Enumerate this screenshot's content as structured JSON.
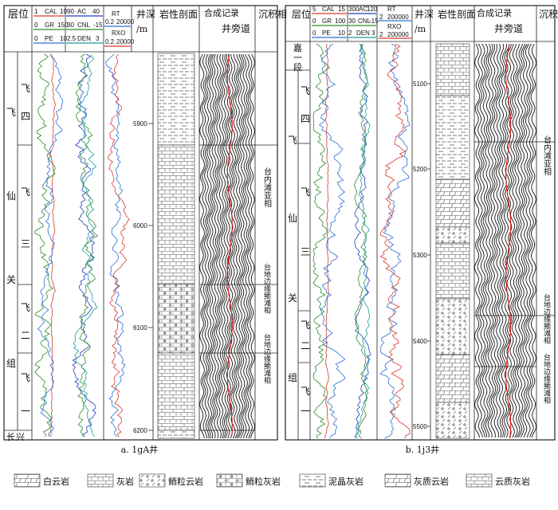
{
  "panel_a": {
    "caption": "a. 1gA井",
    "hdr": {
      "layer": "层位",
      "depth": "井深",
      "depth_unit": "/m",
      "litho": "岩性剖面",
      "synthetic": "合成记录",
      "well_trace": "井旁道",
      "facies": "沉积相"
    },
    "curves": {
      "cal": {
        "name": "CAL",
        "min": "1",
        "max": "10"
      },
      "gr": {
        "name": "GR",
        "min": "0",
        "max": "150"
      },
      "pe": {
        "name": "PE",
        "min": "0",
        "max": "10"
      },
      "ac": {
        "name": "AC",
        "min": "90",
        "max": "40"
      },
      "cnl": {
        "name": "CNL",
        "min": "30",
        "max": "-15"
      },
      "den": {
        "name": "DEN",
        "min": "2.5",
        "max": "3"
      },
      "rt": {
        "name": "RT",
        "min": "0.2",
        "max": "20000"
      },
      "rxo": {
        "name": "RXO",
        "min": "0.2",
        "max": "20000"
      }
    },
    "formation": [
      "飞",
      "仙",
      "关",
      "组"
    ],
    "members": [
      {
        "chars": [
          "飞",
          "四"
        ]
      },
      {
        "chars": [
          "飞",
          "三"
        ]
      },
      {
        "chars": [
          "飞",
          "二"
        ]
      },
      {
        "chars": [
          "飞",
          "一"
        ]
      },
      {
        "chars": [
          "长",
          "兴",
          "组"
        ]
      }
    ],
    "depth_ticks": [
      "5900",
      "6000",
      "6100",
      "6200"
    ],
    "facies": [
      "台内滩亚相",
      "台地边缘鲕滩相",
      "台地边缘鲕滩相"
    ]
  },
  "panel_b": {
    "caption": "b. 1j3井",
    "hdr": {
      "layer": "层位",
      "depth": "井深",
      "depth_unit": "/m",
      "litho": "岩性剖面",
      "synthetic": "合成记录",
      "well_trace": "井旁道",
      "facies": "沉积相"
    },
    "curves": {
      "cal": {
        "name": "CAL",
        "min": "5",
        "max": "15"
      },
      "gr": {
        "name": "GR",
        "min": "0",
        "max": "100"
      },
      "pe": {
        "name": "PE",
        "min": "0",
        "max": "10"
      },
      "ac": {
        "name": "AC",
        "min": "300",
        "max": "120"
      },
      "cnl": {
        "name": "CNL",
        "min": "30",
        "max": "-15"
      },
      "den": {
        "name": "DEN",
        "min": "2",
        "max": "3"
      },
      "rt": {
        "name": "RT",
        "min": "2",
        "max": "200000"
      },
      "rxo": {
        "name": "RXO",
        "min": "2",
        "max": "200000"
      }
    },
    "top_member": [
      "嘉",
      "一",
      "段"
    ],
    "formation": [
      "飞",
      "仙",
      "关",
      "组"
    ],
    "members": [
      {
        "chars": [
          "飞",
          "四"
        ]
      },
      {
        "chars": [
          "飞",
          "三"
        ]
      },
      {
        "chars": [
          "飞",
          "二"
        ]
      },
      {
        "chars": [
          "飞",
          "一"
        ]
      }
    ],
    "depth_ticks": [
      "5100",
      "5200",
      "5300",
      "5400",
      "5500"
    ],
    "facies": [
      "台内滩亚相",
      "台地边缘鲕滩相"
    ]
  },
  "legend": [
    {
      "key": "dolomite",
      "label": "白云岩"
    },
    {
      "key": "limestone",
      "label": "灰岩"
    },
    {
      "key": "oolitic_dolomite",
      "label": "鲕粒云岩"
    },
    {
      "key": "oolitic_limestone",
      "label": "鲕粒灰岩"
    },
    {
      "key": "micritic_limestone",
      "label": "泥晶灰岩"
    },
    {
      "key": "calcareous_dolomite",
      "label": "灰质云岩"
    },
    {
      "key": "dolomitic_limestone",
      "label": "云质灰岩"
    }
  ],
  "colors": {
    "gr": "#2e8b2e",
    "cal": "#d63a2a",
    "pe": "#2a6fd6",
    "ac": "#1f3fbf",
    "cnl": "#2e8b2e",
    "den": "#1a9a9a",
    "rt": "#2a6fd6",
    "rxo": "#d63a2a",
    "trace_marker": "#e01010"
  }
}
